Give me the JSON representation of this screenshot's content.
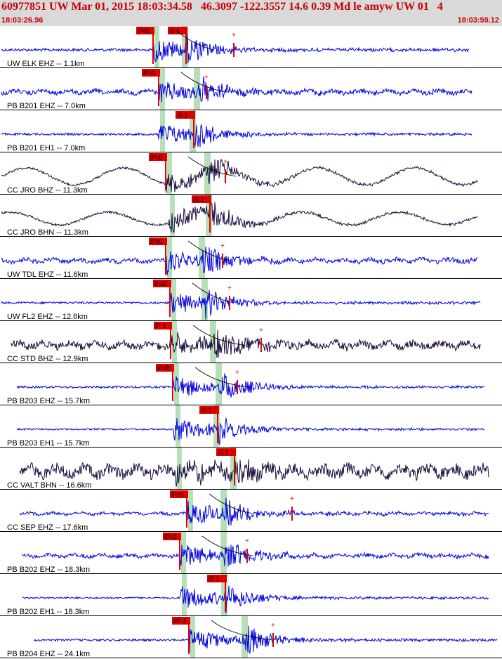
{
  "header": {
    "title": "60977851 UW Mar 01, 2015 18:03:34.58   46.3097 -122.3557 14.6 0.39 Md le amyw UW 01   4",
    "time_start": "18:03:26.96",
    "time_end": "18:03:59.12"
  },
  "colors": {
    "header_bg": "#d9d9d9",
    "header_text": "#c80000",
    "trace_blue": "#0000e0",
    "trace_dark": "#1a0a3a",
    "pick_red": "#e00000",
    "band_green": "#b8e0b8",
    "label_text": "#000000"
  },
  "channels": [
    {
      "label": "UW ELK EHZ -- 1.1km",
      "color": "blue",
      "base_amp": 2,
      "waveform": "quiet",
      "pick": "iPd0",
      "pick2": "iS 1",
      "p": 218,
      "s": 265,
      "end_mark": 333,
      "xstart": 2,
      "xend": 668
    },
    {
      "label": "PB B201 EHZ -- 7.0km",
      "color": "blue",
      "base_amp": 3,
      "waveform": "noisy",
      "pick": "iPc0",
      "pick2": "",
      "p": 226,
      "s": 282,
      "end_mark": 294,
      "xstart": 2,
      "xend": 672
    },
    {
      "label": "PB B201 EH1 -- 7.0km",
      "color": "blue",
      "base_amp": 1.5,
      "waveform": "quiet",
      "pick": "",
      "pick2": "iS 1",
      "p": 226,
      "s": 276,
      "end_mark": 0,
      "xstart": 2,
      "xend": 672
    },
    {
      "label": "CC JRO BHZ -- 11.3km",
      "color": "dark",
      "base_amp": 12,
      "waveform": "wave",
      "pick": "iPc0",
      "pick2": "",
      "p": 236,
      "s": 297,
      "end_mark": 321,
      "xstart": 2,
      "xend": 680
    },
    {
      "label": "CC JRO BHN -- 11.3km",
      "color": "dark",
      "base_amp": 9,
      "waveform": "wave",
      "pick": "",
      "pick2": "iS 1",
      "p": 240,
      "s": 299,
      "end_mark": 0,
      "xstart": 2,
      "xend": 680
    },
    {
      "label": "UW TDL EHZ -- 11.6km",
      "color": "blue",
      "base_amp": 3,
      "waveform": "noisy",
      "pick": "iPc0",
      "pick2": "",
      "p": 236,
      "s": 289,
      "end_mark": 317,
      "xstart": 2,
      "xend": 680
    },
    {
      "label": "UW FL2 EHZ -- 12.6km",
      "color": "blue",
      "base_amp": 1.5,
      "waveform": "quiet",
      "pick": "iPd0",
      "pick2": "",
      "p": 242,
      "s": 293,
      "end_mark": 327,
      "xstart": 2,
      "xend": 684
    },
    {
      "label": "CC STD BHZ -- 12.9km",
      "color": "dark",
      "base_amp": 5,
      "waveform": "noisy",
      "pick": "iP 1",
      "pick2": "",
      "p": 243,
      "s": 305,
      "end_mark": 372,
      "xstart": 16,
      "xend": 684
    },
    {
      "label": "PB B203 EHZ -- 15.7km",
      "color": "blue",
      "base_amp": 1.5,
      "waveform": "quiet",
      "pick": "iPd0",
      "pick2": "",
      "p": 246,
      "s": 313,
      "end_mark": 338,
      "xstart": 24,
      "xend": 690
    },
    {
      "label": "PB B203 EH1 -- 15.7km",
      "color": "blue",
      "base_amp": 1.2,
      "waveform": "quiet",
      "pick": "",
      "pick2": "iS 1",
      "p": 248,
      "s": 310,
      "end_mark": 0,
      "xstart": 24,
      "xend": 690
    },
    {
      "label": "CC VALT BHN -- 16.6km",
      "color": "dark",
      "base_amp": 8,
      "waveform": "noisy",
      "pick": "",
      "pick2": "iS 1",
      "p": 250,
      "s": 334,
      "end_mark": 0,
      "xstart": 28,
      "xend": 696
    },
    {
      "label": "CC SEP EHZ -- 17.6km",
      "color": "blue",
      "base_amp": 2,
      "waveform": "noisy",
      "pick": "iPc0",
      "pick2": "",
      "p": 266,
      "s": 320,
      "end_mark": 416,
      "xstart": 28,
      "xend": 696
    },
    {
      "label": "PB B202 EHZ -- 18.3km",
      "color": "blue",
      "base_amp": 2.5,
      "waveform": "noisy",
      "pick": "iPc0",
      "pick2": "",
      "p": 256,
      "s": 320,
      "end_mark": 352,
      "xstart": 32,
      "xend": 696
    },
    {
      "label": "PB B202 EH1 -- 18.3km",
      "color": "blue",
      "base_amp": 1.2,
      "waveform": "quiet",
      "pick": "",
      "pick2": "iS 1",
      "p": 257,
      "s": 321,
      "end_mark": 0,
      "xstart": 32,
      "xend": 696
    },
    {
      "label": "PB B204 EHZ -- 24.1km",
      "color": "blue",
      "base_amp": 1.5,
      "waveform": "quiet",
      "pick": "eP 2",
      "pick2": "",
      "p": 269,
      "s": 350,
      "end_mark": 389,
      "xstart": 48,
      "xend": 708
    }
  ]
}
